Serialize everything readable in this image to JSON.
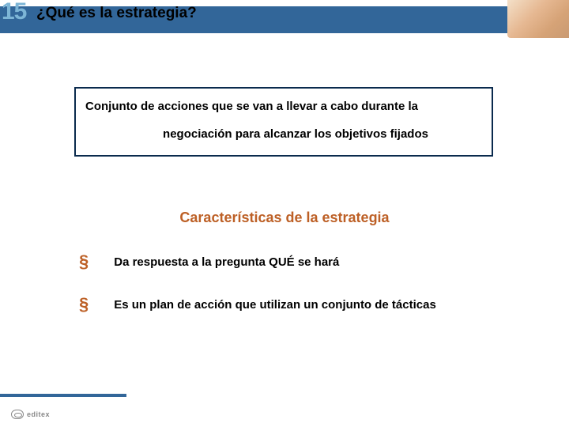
{
  "colors": {
    "header_bar": "#326699",
    "unit_number": "#7db5d6",
    "accent": "#bd6026",
    "box_border": "#0a2a4d",
    "text": "#000000",
    "background": "#ffffff",
    "logo_gray": "#888888"
  },
  "typography": {
    "title_fontsize": 19,
    "unit_fontsize": 30,
    "body_fontsize": 15,
    "subtitle_fontsize": 18,
    "logo_fontsize": 9
  },
  "header": {
    "unit_number": "15",
    "title": "¿Qué es la estrategia?"
  },
  "definition": {
    "line1": "Conjunto de acciones que se van a llevar a cabo durante la",
    "line2": "negociación para alcanzar los objetivos fijados"
  },
  "subtitle": "Características de la estrategia",
  "bullets": [
    {
      "marker": "§",
      "text": "Da respuesta a la pregunta QUÉ se hará"
    },
    {
      "marker": "§",
      "text": "Es un plan de acción que utilizan un conjunto de tácticas"
    }
  ],
  "footer": {
    "logo_text": "editex"
  }
}
